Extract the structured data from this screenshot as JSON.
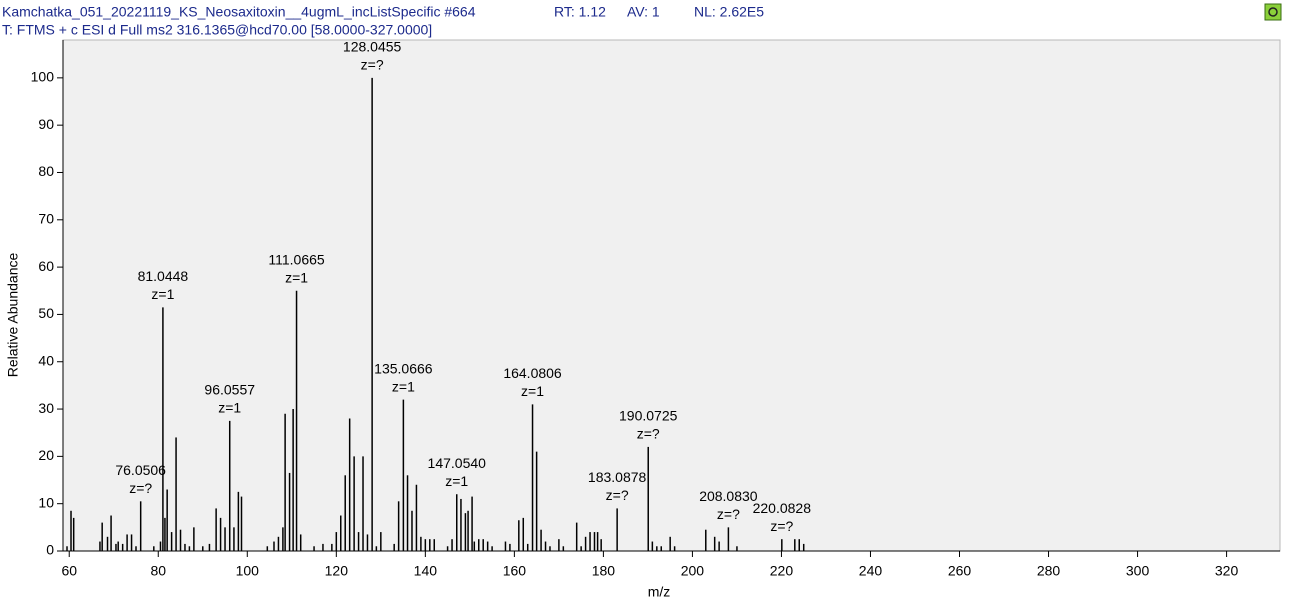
{
  "header": {
    "title": "Kamchatka_051_20221119_KS_Neosaxitoxin__4ugmL_incListSpecific #664",
    "rt": "RT: 1.12",
    "av": "AV: 1",
    "nl": "NL: 2.62E5",
    "scan": "T: FTMS + c ESI d Full ms2 316.1365@hcd70.00 [58.0000-327.0000]"
  },
  "chart_data": {
    "type": "stem",
    "color": "#000000",
    "xlabel": "m/z",
    "ylabel": "Relative Abundance",
    "xlim": [
      58.6,
      332
    ],
    "ylim": [
      0,
      108
    ],
    "xticks": [
      60,
      80,
      100,
      120,
      140,
      160,
      180,
      200,
      220,
      240,
      260,
      280,
      300,
      320
    ],
    "yticks": [
      0,
      10,
      20,
      30,
      40,
      50,
      60,
      70,
      80,
      90,
      100
    ],
    "x": [
      59.5,
      60.4,
      61.0,
      66.9,
      67.4,
      68.6,
      69.4,
      70.5,
      71.0,
      72.0,
      73.0,
      74.0,
      75.0,
      76.0506,
      79.0,
      80.5,
      81.0448,
      81.5,
      82.0,
      83.0,
      84.0,
      85.0,
      86.0,
      87.0,
      88.0,
      90.0,
      91.5,
      93.0,
      94.0,
      95.0,
      96.0557,
      97.0,
      98.0,
      98.7,
      104.5,
      106.0,
      107.0,
      108.0,
      108.5,
      109.5,
      110.3,
      111.0665,
      112.0,
      115.0,
      117.0,
      119.0,
      120.0,
      121.0,
      122.0,
      123.0,
      124.0,
      125.0,
      126.0,
      127.0,
      128.0455,
      129.0,
      130.0,
      133.0,
      134.0,
      135.0666,
      136.0,
      137.0,
      138.0,
      139.0,
      140.0,
      141.0,
      142.0,
      145.0,
      146.0,
      147.054,
      148.0,
      149.0,
      149.6,
      150.5,
      151.0,
      152.0,
      153.0,
      154.0,
      155.0,
      158.0,
      159.0,
      161.0,
      162.0,
      163.0,
      164.0806,
      165.0,
      166.0,
      167.0,
      168.0,
      170.0,
      171.0,
      174.0,
      175.0,
      176.0,
      177.0,
      178.0,
      178.7,
      179.5,
      183.0878,
      190.0725,
      191.0,
      192.0,
      193.0,
      195.0,
      196.0,
      203.0,
      205.0,
      206.0,
      208.083,
      210.0,
      220.0828,
      223.0,
      224.0,
      225.0
    ],
    "values": [
      1,
      8.5,
      7,
      2,
      6,
      3,
      7.5,
      1.5,
      2,
      1.5,
      3.5,
      3.5,
      1,
      10.5,
      1,
      2,
      51.5,
      7,
      13,
      4,
      24,
      4.5,
      1.5,
      1,
      5,
      1,
      1.5,
      9,
      7,
      5,
      27.5,
      5,
      12.5,
      11.5,
      1,
      2,
      3,
      5,
      29,
      16.5,
      30,
      55,
      3.5,
      1,
      1.5,
      1.5,
      4,
      7.5,
      16,
      28,
      20,
      4,
      20,
      3.5,
      100,
      1,
      4,
      1.5,
      10.5,
      32,
      16,
      8.5,
      14,
      3,
      2.5,
      2.5,
      2.5,
      1,
      2.5,
      12,
      11,
      8,
      8.5,
      11.5,
      2,
      2.5,
      2.5,
      2,
      1,
      2,
      1.5,
      6.5,
      7,
      1.5,
      31,
      21,
      4.5,
      2,
      1,
      2.5,
      1,
      6,
      1,
      3,
      4,
      4,
      4,
      2.5,
      9,
      22,
      2,
      1,
      1,
      3,
      1,
      4.5,
      3,
      2,
      5,
      1,
      2.5,
      2.5,
      2.5,
      1.5
    ],
    "annotations": [
      {
        "x": 76.0506,
        "y": 10.5,
        "label": "76.0506",
        "charge": "z=?"
      },
      {
        "x": 81.0448,
        "y": 51.5,
        "label": "81.0448",
        "charge": "z=1"
      },
      {
        "x": 96.0557,
        "y": 27.5,
        "label": "96.0557",
        "charge": "z=1"
      },
      {
        "x": 111.0665,
        "y": 55,
        "label": "111.0665",
        "charge": "z=1"
      },
      {
        "x": 128.0455,
        "y": 100,
        "label": "128.0455",
        "charge": "z=?"
      },
      {
        "x": 135.0666,
        "y": 32,
        "label": "135.0666",
        "charge": "z=1"
      },
      {
        "x": 147.054,
        "y": 12,
        "label": "147.0540",
        "charge": "z=1"
      },
      {
        "x": 164.0806,
        "y": 31,
        "label": "164.0806",
        "charge": "z=1"
      },
      {
        "x": 183.0878,
        "y": 9,
        "label": "183.0878",
        "charge": "z=?"
      },
      {
        "x": 190.0725,
        "y": 22,
        "label": "190.0725",
        "charge": "z=?"
      },
      {
        "x": 208.083,
        "y": 5,
        "label": "208.0830",
        "charge": "z=?"
      },
      {
        "x": 220.0828,
        "y": 2.5,
        "label": "220.0828",
        "charge": "z=?"
      }
    ]
  }
}
